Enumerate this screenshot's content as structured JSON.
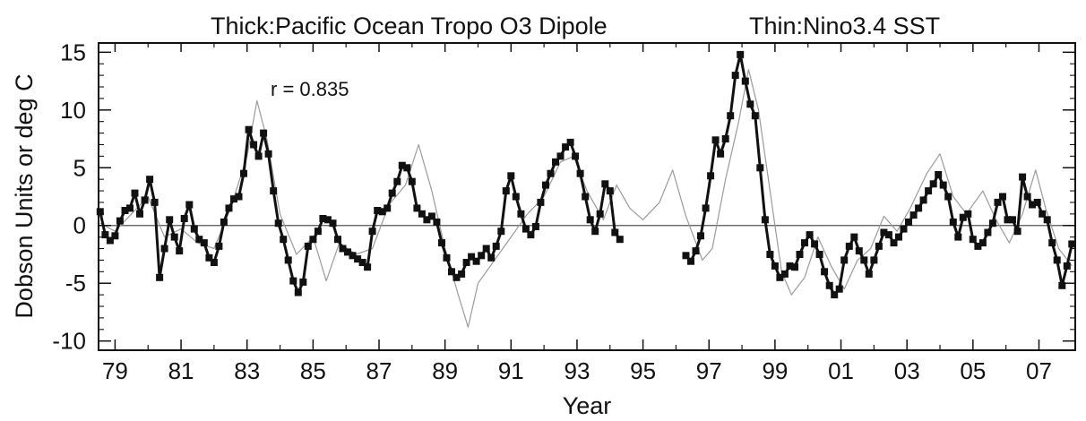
{
  "chart_data": {
    "type": "line",
    "title_left": "Thick:Pacific Ocean Tropo O3 Dipole",
    "title_right": "Thin:Nino3.4 SST",
    "xlabel": "Year",
    "ylabel": "Dobson Units or deg C",
    "annotation": "r =   0.835",
    "xlim": [
      1978.5,
      2008.1
    ],
    "ylim": [
      -10.8,
      15.8
    ],
    "x_ticks": [
      {
        "value": 1979,
        "label": "79"
      },
      {
        "value": 1981,
        "label": "81"
      },
      {
        "value": 1983,
        "label": "83"
      },
      {
        "value": 1985,
        "label": "85"
      },
      {
        "value": 1987,
        "label": "87"
      },
      {
        "value": 1989,
        "label": "89"
      },
      {
        "value": 1991,
        "label": "91"
      },
      {
        "value": 1993,
        "label": "93"
      },
      {
        "value": 1995,
        "label": "95"
      },
      {
        "value": 1997,
        "label": "97"
      },
      {
        "value": 1999,
        "label": "99"
      },
      {
        "value": 2001,
        "label": "01"
      },
      {
        "value": 2003,
        "label": "03"
      },
      {
        "value": 2005,
        "label": "05"
      },
      {
        "value": 2007,
        "label": "07"
      }
    ],
    "y_ticks": [
      {
        "value": 15,
        "label": "15"
      },
      {
        "value": 10,
        "label": "10"
      },
      {
        "value": 5,
        "label": "5"
      },
      {
        "value": 0,
        "label": "0"
      },
      {
        "value": -5,
        "label": "-5"
      },
      {
        "value": -10,
        "label": "-10"
      }
    ],
    "zero_line": true,
    "colors": {
      "thick": "#111111",
      "thin": "#9a9a9a"
    },
    "series": [
      {
        "style": "thick",
        "segments": [
          [
            [
              1978.55,
              1.2
            ],
            [
              1978.7,
              -0.8
            ],
            [
              1978.85,
              -1.3
            ],
            [
              1979.0,
              -0.9
            ],
            [
              1979.15,
              0.4
            ],
            [
              1979.3,
              1.3
            ],
            [
              1979.45,
              1.5
            ],
            [
              1979.6,
              2.8
            ],
            [
              1979.75,
              1.0
            ],
            [
              1979.9,
              2.2
            ],
            [
              1980.05,
              4.0
            ],
            [
              1980.2,
              2.0
            ],
            [
              1980.35,
              -4.5
            ],
            [
              1980.5,
              -2.0
            ],
            [
              1980.65,
              0.5
            ],
            [
              1980.8,
              -1.0
            ],
            [
              1980.95,
              -2.2
            ],
            [
              1981.1,
              0.6
            ],
            [
              1981.25,
              1.8
            ],
            [
              1981.4,
              -0.3
            ],
            [
              1981.55,
              -1.2
            ],
            [
              1981.7,
              -1.5
            ],
            [
              1981.85,
              -2.8
            ],
            [
              1982.0,
              -3.2
            ],
            [
              1982.15,
              -1.8
            ],
            [
              1982.3,
              0.3
            ],
            [
              1982.45,
              1.5
            ],
            [
              1982.6,
              2.3
            ],
            [
              1982.75,
              2.5
            ],
            [
              1982.9,
              4.5
            ],
            [
              1983.05,
              8.3
            ],
            [
              1983.2,
              7.0
            ],
            [
              1983.35,
              6.0
            ],
            [
              1983.5,
              8.0
            ],
            [
              1983.65,
              6.2
            ],
            [
              1983.8,
              3.0
            ],
            [
              1983.95,
              0.2
            ],
            [
              1984.1,
              -1.2
            ],
            [
              1984.25,
              -3.0
            ],
            [
              1984.4,
              -4.8
            ],
            [
              1984.55,
              -5.8
            ],
            [
              1984.7,
              -4.9
            ],
            [
              1984.85,
              -1.8
            ],
            [
              1985.0,
              -1.2
            ],
            [
              1985.15,
              -0.5
            ],
            [
              1985.3,
              0.6
            ],
            [
              1985.45,
              0.5
            ],
            [
              1985.6,
              0.2
            ],
            [
              1985.75,
              -1.2
            ],
            [
              1985.9,
              -2.0
            ],
            [
              1986.05,
              -2.3
            ],
            [
              1986.2,
              -2.6
            ],
            [
              1986.35,
              -2.9
            ],
            [
              1986.5,
              -3.2
            ],
            [
              1986.65,
              -3.6
            ],
            [
              1986.8,
              -0.5
            ],
            [
              1986.95,
              1.3
            ],
            [
              1987.1,
              1.2
            ],
            [
              1987.25,
              1.5
            ],
            [
              1987.4,
              2.8
            ],
            [
              1987.55,
              3.8
            ],
            [
              1987.7,
              5.2
            ],
            [
              1987.85,
              5.0
            ],
            [
              1988.0,
              3.8
            ],
            [
              1988.15,
              1.5
            ],
            [
              1988.3,
              1.0
            ],
            [
              1988.45,
              0.5
            ],
            [
              1988.6,
              0.8
            ],
            [
              1988.75,
              0.3
            ],
            [
              1988.9,
              -1.5
            ],
            [
              1989.05,
              -2.8
            ],
            [
              1989.2,
              -4.0
            ],
            [
              1989.35,
              -4.5
            ],
            [
              1989.5,
              -4.2
            ],
            [
              1989.65,
              -3.2
            ],
            [
              1989.8,
              -2.7
            ],
            [
              1989.95,
              -3.1
            ],
            [
              1990.1,
              -2.6
            ],
            [
              1990.25,
              -2.0
            ],
            [
              1990.4,
              -2.8
            ],
            [
              1990.55,
              -1.8
            ],
            [
              1990.7,
              -0.5
            ],
            [
              1990.85,
              3.0
            ],
            [
              1991.0,
              4.3
            ],
            [
              1991.15,
              2.5
            ],
            [
              1991.3,
              1.0
            ],
            [
              1991.45,
              -0.3
            ],
            [
              1991.6,
              -0.8
            ],
            [
              1991.75,
              -0.1
            ],
            [
              1991.9,
              2.0
            ],
            [
              1992.05,
              3.5
            ],
            [
              1992.2,
              4.5
            ],
            [
              1992.35,
              5.5
            ],
            [
              1992.5,
              6.0
            ],
            [
              1992.65,
              6.8
            ],
            [
              1992.8,
              7.2
            ],
            [
              1992.95,
              6.0
            ],
            [
              1993.1,
              4.5
            ],
            [
              1993.25,
              2.5
            ],
            [
              1993.4,
              0.5
            ],
            [
              1993.55,
              -0.5
            ],
            [
              1993.7,
              1.0
            ],
            [
              1993.85,
              3.6
            ],
            [
              1994.0,
              3.0
            ],
            [
              1994.15,
              -0.6
            ],
            [
              1994.3,
              -1.2
            ]
          ],
          [
            [
              1996.3,
              -2.6
            ],
            [
              1996.45,
              -3.1
            ],
            [
              1996.6,
              -2.2
            ],
            [
              1996.75,
              -0.9
            ],
            [
              1996.9,
              1.5
            ],
            [
              1997.05,
              4.3
            ],
            [
              1997.2,
              7.4
            ],
            [
              1997.35,
              6.2
            ],
            [
              1997.5,
              7.5
            ],
            [
              1997.65,
              9.5
            ],
            [
              1997.8,
              13.0
            ],
            [
              1997.95,
              14.8
            ],
            [
              1998.1,
              12.5
            ],
            [
              1998.25,
              10.5
            ],
            [
              1998.4,
              9.5
            ],
            [
              1998.55,
              5.0
            ],
            [
              1998.7,
              0.5
            ],
            [
              1998.85,
              -2.5
            ],
            [
              1999.0,
              -3.5
            ],
            [
              1999.15,
              -4.5
            ],
            [
              1999.3,
              -4.2
            ],
            [
              1999.45,
              -3.5
            ],
            [
              1999.6,
              -3.6
            ],
            [
              1999.75,
              -2.5
            ],
            [
              1999.9,
              -1.5
            ],
            [
              2000.05,
              -0.8
            ],
            [
              2000.2,
              -1.6
            ],
            [
              2000.35,
              -2.5
            ],
            [
              2000.5,
              -4.0
            ],
            [
              2000.65,
              -5.2
            ],
            [
              2000.8,
              -6.0
            ],
            [
              2000.95,
              -5.5
            ],
            [
              2001.1,
              -3.0
            ],
            [
              2001.25,
              -1.8
            ],
            [
              2001.4,
              -1.0
            ],
            [
              2001.55,
              -2.2
            ],
            [
              2001.7,
              -3.0
            ],
            [
              2001.85,
              -4.2
            ],
            [
              2002.0,
              -3.0
            ],
            [
              2002.15,
              -1.8
            ],
            [
              2002.3,
              -0.6
            ],
            [
              2002.45,
              -0.8
            ],
            [
              2002.6,
              -1.5
            ],
            [
              2002.75,
              -1.0
            ],
            [
              2002.9,
              -0.3
            ],
            [
              2003.05,
              0.3
            ],
            [
              2003.2,
              0.9
            ],
            [
              2003.35,
              1.5
            ],
            [
              2003.5,
              2.2
            ],
            [
              2003.65,
              3.0
            ],
            [
              2003.8,
              3.6
            ],
            [
              2003.95,
              4.4
            ],
            [
              2004.1,
              3.5
            ],
            [
              2004.25,
              2.5
            ],
            [
              2004.4,
              0.3
            ],
            [
              2004.55,
              -1.0
            ],
            [
              2004.7,
              0.7
            ],
            [
              2004.85,
              1.0
            ],
            [
              2005.0,
              -1.2
            ],
            [
              2005.15,
              -1.8
            ],
            [
              2005.3,
              -1.5
            ],
            [
              2005.45,
              -0.6
            ],
            [
              2005.6,
              0.2
            ],
            [
              2005.75,
              2.0
            ],
            [
              2005.9,
              2.5
            ],
            [
              2006.05,
              0.5
            ],
            [
              2006.2,
              0.5
            ],
            [
              2006.35,
              -0.5
            ],
            [
              2006.5,
              4.2
            ],
            [
              2006.65,
              2.5
            ],
            [
              2006.8,
              1.8
            ],
            [
              2006.95,
              2.0
            ],
            [
              2007.1,
              1.0
            ],
            [
              2007.25,
              0.5
            ],
            [
              2007.4,
              -1.5
            ],
            [
              2007.55,
              -3.0
            ],
            [
              2007.7,
              -5.2
            ],
            [
              2007.85,
              -3.5
            ],
            [
              2008.0,
              -1.6
            ]
          ]
        ]
      },
      {
        "style": "thin",
        "segments": [
          [
            [
              1978.55,
              0.2
            ],
            [
              1979.0,
              -0.5
            ],
            [
              1979.5,
              1.0
            ],
            [
              1980.0,
              2.5
            ],
            [
              1980.5,
              -1.0
            ],
            [
              1981.0,
              -0.3
            ],
            [
              1981.5,
              -1.5
            ],
            [
              1982.0,
              -2.0
            ],
            [
              1982.5,
              1.5
            ],
            [
              1983.0,
              6.0
            ],
            [
              1983.3,
              10.8
            ],
            [
              1983.6,
              7.5
            ],
            [
              1984.0,
              1.0
            ],
            [
              1984.5,
              -2.5
            ],
            [
              1985.0,
              -1.0
            ],
            [
              1985.4,
              -4.8
            ],
            [
              1985.8,
              -1.5
            ],
            [
              1986.3,
              -2.5
            ],
            [
              1986.8,
              -2.0
            ],
            [
              1987.3,
              1.8
            ],
            [
              1987.8,
              3.5
            ],
            [
              1988.2,
              7.0
            ],
            [
              1988.6,
              3.0
            ],
            [
              1989.0,
              -2.0
            ],
            [
              1989.4,
              -6.0
            ],
            [
              1989.7,
              -8.8
            ],
            [
              1990.0,
              -5.0
            ],
            [
              1990.5,
              -3.0
            ],
            [
              1991.0,
              -1.0
            ],
            [
              1991.5,
              1.0
            ],
            [
              1992.0,
              2.5
            ],
            [
              1992.5,
              5.5
            ],
            [
              1992.9,
              6.0
            ],
            [
              1993.3,
              3.0
            ],
            [
              1993.8,
              0.5
            ],
            [
              1994.2,
              3.5
            ],
            [
              1994.6,
              1.5
            ],
            [
              1995.0,
              0.5
            ],
            [
              1995.5,
              2.0
            ],
            [
              1995.9,
              4.8
            ],
            [
              1996.3,
              0.8
            ],
            [
              1996.8,
              -3.0
            ],
            [
              1997.1,
              -2.0
            ],
            [
              1997.5,
              4.0
            ],
            [
              1997.9,
              9.0
            ],
            [
              1998.2,
              13.5
            ],
            [
              1998.5,
              10.0
            ],
            [
              1998.9,
              2.0
            ],
            [
              1999.2,
              -4.0
            ],
            [
              1999.5,
              -6.0
            ],
            [
              1999.9,
              -4.5
            ],
            [
              2000.3,
              -1.0
            ],
            [
              2000.7,
              -3.5
            ],
            [
              2001.1,
              -5.5
            ],
            [
              2001.5,
              -3.0
            ],
            [
              2001.9,
              -2.0
            ],
            [
              2002.3,
              0.8
            ],
            [
              2002.7,
              -0.5
            ],
            [
              2003.1,
              1.5
            ],
            [
              2003.6,
              4.5
            ],
            [
              2004.0,
              6.2
            ],
            [
              2004.4,
              2.5
            ],
            [
              2004.8,
              1.0
            ],
            [
              2005.3,
              3.0
            ],
            [
              2005.7,
              0.5
            ],
            [
              2006.1,
              -1.5
            ],
            [
              2006.5,
              1.0
            ],
            [
              2006.9,
              4.8
            ],
            [
              2007.2,
              1.5
            ],
            [
              2007.6,
              -2.0
            ],
            [
              2008.0,
              -3.5
            ]
          ]
        ]
      }
    ]
  }
}
